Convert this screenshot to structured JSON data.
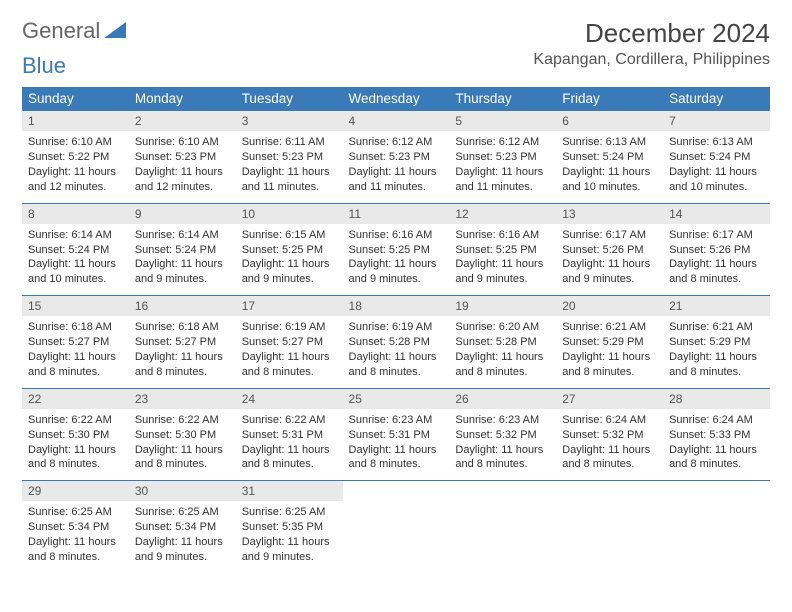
{
  "logo": {
    "text1": "General",
    "text2": "Blue"
  },
  "title": "December 2024",
  "location": "Kapangan, Cordillera, Philippines",
  "colors": {
    "header_bg": "#3a7ab8",
    "header_fg": "#ffffff",
    "daynum_bg": "#e9e9e9",
    "border": "#3a7ab8",
    "text": "#333333",
    "background": "#ffffff"
  },
  "day_headers": [
    "Sunday",
    "Monday",
    "Tuesday",
    "Wednesday",
    "Thursday",
    "Friday",
    "Saturday"
  ],
  "weeks": [
    [
      {
        "n": "1",
        "sunrise": "6:10 AM",
        "sunset": "5:22 PM",
        "daylight": "11 hours and 12 minutes."
      },
      {
        "n": "2",
        "sunrise": "6:10 AM",
        "sunset": "5:23 PM",
        "daylight": "11 hours and 12 minutes."
      },
      {
        "n": "3",
        "sunrise": "6:11 AM",
        "sunset": "5:23 PM",
        "daylight": "11 hours and 11 minutes."
      },
      {
        "n": "4",
        "sunrise": "6:12 AM",
        "sunset": "5:23 PM",
        "daylight": "11 hours and 11 minutes."
      },
      {
        "n": "5",
        "sunrise": "6:12 AM",
        "sunset": "5:23 PM",
        "daylight": "11 hours and 11 minutes."
      },
      {
        "n": "6",
        "sunrise": "6:13 AM",
        "sunset": "5:24 PM",
        "daylight": "11 hours and 10 minutes."
      },
      {
        "n": "7",
        "sunrise": "6:13 AM",
        "sunset": "5:24 PM",
        "daylight": "11 hours and 10 minutes."
      }
    ],
    [
      {
        "n": "8",
        "sunrise": "6:14 AM",
        "sunset": "5:24 PM",
        "daylight": "11 hours and 10 minutes."
      },
      {
        "n": "9",
        "sunrise": "6:14 AM",
        "sunset": "5:24 PM",
        "daylight": "11 hours and 9 minutes."
      },
      {
        "n": "10",
        "sunrise": "6:15 AM",
        "sunset": "5:25 PM",
        "daylight": "11 hours and 9 minutes."
      },
      {
        "n": "11",
        "sunrise": "6:16 AM",
        "sunset": "5:25 PM",
        "daylight": "11 hours and 9 minutes."
      },
      {
        "n": "12",
        "sunrise": "6:16 AM",
        "sunset": "5:25 PM",
        "daylight": "11 hours and 9 minutes."
      },
      {
        "n": "13",
        "sunrise": "6:17 AM",
        "sunset": "5:26 PM",
        "daylight": "11 hours and 9 minutes."
      },
      {
        "n": "14",
        "sunrise": "6:17 AM",
        "sunset": "5:26 PM",
        "daylight": "11 hours and 8 minutes."
      }
    ],
    [
      {
        "n": "15",
        "sunrise": "6:18 AM",
        "sunset": "5:27 PM",
        "daylight": "11 hours and 8 minutes."
      },
      {
        "n": "16",
        "sunrise": "6:18 AM",
        "sunset": "5:27 PM",
        "daylight": "11 hours and 8 minutes."
      },
      {
        "n": "17",
        "sunrise": "6:19 AM",
        "sunset": "5:27 PM",
        "daylight": "11 hours and 8 minutes."
      },
      {
        "n": "18",
        "sunrise": "6:19 AM",
        "sunset": "5:28 PM",
        "daylight": "11 hours and 8 minutes."
      },
      {
        "n": "19",
        "sunrise": "6:20 AM",
        "sunset": "5:28 PM",
        "daylight": "11 hours and 8 minutes."
      },
      {
        "n": "20",
        "sunrise": "6:21 AM",
        "sunset": "5:29 PM",
        "daylight": "11 hours and 8 minutes."
      },
      {
        "n": "21",
        "sunrise": "6:21 AM",
        "sunset": "5:29 PM",
        "daylight": "11 hours and 8 minutes."
      }
    ],
    [
      {
        "n": "22",
        "sunrise": "6:22 AM",
        "sunset": "5:30 PM",
        "daylight": "11 hours and 8 minutes."
      },
      {
        "n": "23",
        "sunrise": "6:22 AM",
        "sunset": "5:30 PM",
        "daylight": "11 hours and 8 minutes."
      },
      {
        "n": "24",
        "sunrise": "6:22 AM",
        "sunset": "5:31 PM",
        "daylight": "11 hours and 8 minutes."
      },
      {
        "n": "25",
        "sunrise": "6:23 AM",
        "sunset": "5:31 PM",
        "daylight": "11 hours and 8 minutes."
      },
      {
        "n": "26",
        "sunrise": "6:23 AM",
        "sunset": "5:32 PM",
        "daylight": "11 hours and 8 minutes."
      },
      {
        "n": "27",
        "sunrise": "6:24 AM",
        "sunset": "5:32 PM",
        "daylight": "11 hours and 8 minutes."
      },
      {
        "n": "28",
        "sunrise": "6:24 AM",
        "sunset": "5:33 PM",
        "daylight": "11 hours and 8 minutes."
      }
    ],
    [
      {
        "n": "29",
        "sunrise": "6:25 AM",
        "sunset": "5:34 PM",
        "daylight": "11 hours and 8 minutes."
      },
      {
        "n": "30",
        "sunrise": "6:25 AM",
        "sunset": "5:34 PM",
        "daylight": "11 hours and 9 minutes."
      },
      {
        "n": "31",
        "sunrise": "6:25 AM",
        "sunset": "5:35 PM",
        "daylight": "11 hours and 9 minutes."
      },
      null,
      null,
      null,
      null
    ]
  ],
  "labels": {
    "sunrise": "Sunrise: ",
    "sunset": "Sunset: ",
    "daylight": "Daylight: "
  }
}
